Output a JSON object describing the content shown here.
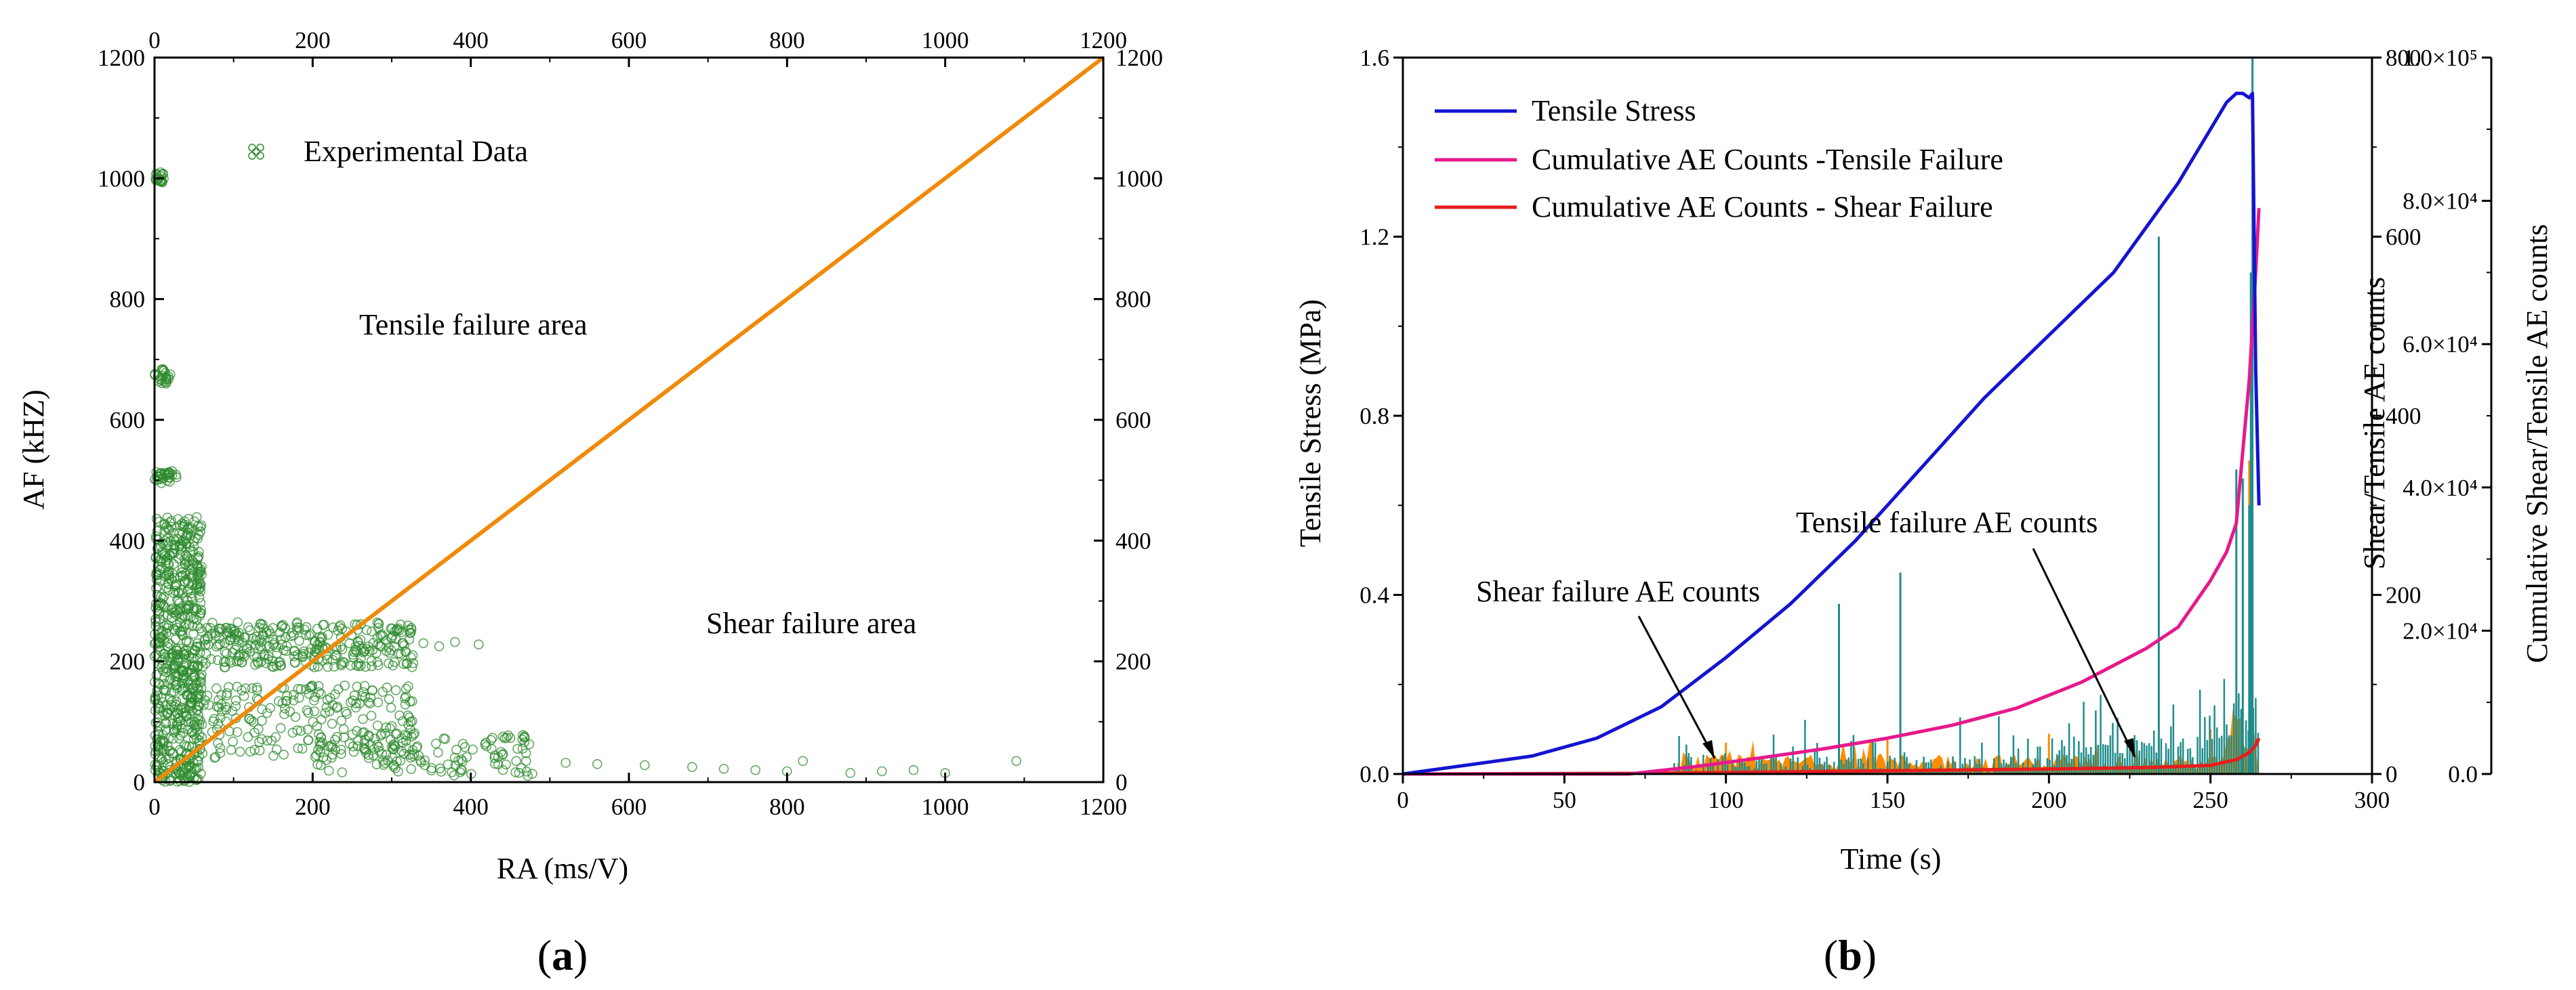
{
  "charts": {
    "a": {
      "caption_open": "(",
      "caption_letter": "a",
      "caption_close": ")",
      "xlabel": "RA  (ms/V)",
      "ylabel": "AF (kHZ)",
      "legend_label": "Experimental Data",
      "annotation_tensile": "Tensile failure area",
      "annotation_shear": "Shear failure area"
    },
    "b": {
      "caption_open": "(",
      "caption_letter": "b",
      "caption_close": ")",
      "xlabel": "Time (s)",
      "ylabel_left": "Tensile Stress (MPa)",
      "ylabel_right1": "Shear/Tensile AE counts",
      "ylabel_right2": "Cumulative Shear/Tensile AE counts",
      "legend": [
        "Tensile Stress",
        "Cumulative AE Counts -Tensile Failure",
        "Cumulative AE Counts - Shear Failure"
      ],
      "annotation_shear": "Shear failure AE counts",
      "annotation_tensile": "Tensile failure AE counts"
    }
  },
  "chart_data": [
    {
      "type": "scatter",
      "title": "",
      "xlabel": "RA  (ms/V)",
      "ylabel": "AF (kHZ)",
      "xlim": [
        0,
        1200
      ],
      "ylim": [
        0,
        1200
      ],
      "xticks": [
        "0",
        "200",
        "400",
        "600",
        "800",
        "1000",
        "1200"
      ],
      "yticks": [
        "0",
        "200",
        "400",
        "600",
        "800",
        "1000",
        "1200"
      ],
      "legend": [
        "Experimental Data"
      ],
      "boundary_line": {
        "x": [
          0,
          1200
        ],
        "y": [
          0,
          1200
        ],
        "color": "#F08A0A"
      },
      "clusters": [
        {
          "x_range": [
            0,
            12
          ],
          "y_range": [
            990,
            1010
          ],
          "n": 20
        },
        {
          "x_range": [
            0,
            22
          ],
          "y_range": [
            660,
            685
          ],
          "n": 25
        },
        {
          "x_range": [
            0,
            28
          ],
          "y_range": [
            495,
            515
          ],
          "n": 30
        },
        {
          "x_range": [
            0,
            60
          ],
          "y_range": [
            0,
            440
          ],
          "n": 650
        },
        {
          "x_range": [
            60,
            330
          ],
          "y_range": [
            190,
            265
          ],
          "n": 300
        },
        {
          "x_range": [
            60,
            330
          ],
          "y_range": [
            40,
            160
          ],
          "n": 220
        },
        {
          "x_range": [
            200,
            480
          ],
          "y_range": [
            10,
            80
          ],
          "n": 120
        }
      ],
      "points": [
        {
          "x": 560,
          "y": 30
        },
        {
          "x": 620,
          "y": 28
        },
        {
          "x": 680,
          "y": 25
        },
        {
          "x": 720,
          "y": 22
        },
        {
          "x": 760,
          "y": 20
        },
        {
          "x": 800,
          "y": 18
        },
        {
          "x": 820,
          "y": 35
        },
        {
          "x": 880,
          "y": 15
        },
        {
          "x": 920,
          "y": 18
        },
        {
          "x": 960,
          "y": 20
        },
        {
          "x": 1000,
          "y": 15
        },
        {
          "x": 1090,
          "y": 35
        },
        {
          "x": 340,
          "y": 230
        },
        {
          "x": 360,
          "y": 225
        },
        {
          "x": 380,
          "y": 232
        },
        {
          "x": 410,
          "y": 228
        },
        {
          "x": 430,
          "y": 40
        },
        {
          "x": 470,
          "y": 35
        },
        {
          "x": 520,
          "y": 32
        }
      ],
      "annotations": [
        "Tensile failure area",
        "Shear failure area"
      ],
      "color": "#2E8B2E"
    },
    {
      "type": "line",
      "title": "",
      "xlabel": "Time (s)",
      "ylabel": "Tensile Stress (MPa)",
      "xlim": [
        0,
        300
      ],
      "ylim": [
        0,
        1.6
      ],
      "xticks": [
        "0",
        "50",
        "100",
        "150",
        "200",
        "250",
        "300"
      ],
      "yticks": [
        "0.0",
        "0.4",
        "0.8",
        "1.2",
        "1.6"
      ],
      "y2_label": "Shear/Tensile AE counts",
      "y2lim": [
        0,
        800
      ],
      "y2ticks": [
        "0",
        "200",
        "400",
        "600",
        "800"
      ],
      "y3_label": "Cumulative Shear/Tensile AE counts",
      "y3lim": [
        0,
        100000
      ],
      "y3ticks": [
        "0.0",
        "2.0×10⁴",
        "4.0×10⁴",
        "6.0×10⁴",
        "8.0×10⁴",
        "1.0×10⁵"
      ],
      "series": [
        {
          "name": "Tensile Stress",
          "axis": "y",
          "color": "#1414D2",
          "x": [
            0,
            20,
            40,
            60,
            80,
            100,
            120,
            140,
            160,
            180,
            200,
            220,
            240,
            255,
            258,
            260,
            262,
            263,
            264,
            265
          ],
          "values": [
            0.0,
            0.02,
            0.04,
            0.08,
            0.15,
            0.26,
            0.38,
            0.52,
            0.68,
            0.84,
            0.98,
            1.12,
            1.32,
            1.5,
            1.52,
            1.52,
            1.51,
            1.52,
            0.9,
            0.6
          ]
        },
        {
          "name": "Cumulative AE Counts -Tensile Failure",
          "axis": "y3",
          "color": "#E6198C",
          "x": [
            0,
            70,
            90,
            110,
            130,
            150,
            170,
            190,
            210,
            230,
            240,
            250,
            255,
            258,
            260,
            262,
            264,
            265
          ],
          "values": [
            0,
            0,
            1000,
            2200,
            3500,
            5000,
            6800,
            9200,
            12800,
            17500,
            20500,
            27000,
            31000,
            35000,
            45000,
            55000,
            70000,
            79000
          ]
        },
        {
          "name": "Cumulative AE Counts - Shear Failure",
          "axis": "y3",
          "color": "#E61E1E",
          "x": [
            0,
            80,
            120,
            160,
            200,
            230,
            250,
            258,
            262,
            264,
            265
          ],
          "values": [
            0,
            100,
            300,
            500,
            700,
            900,
            1200,
            2000,
            3000,
            4000,
            5000
          ]
        },
        {
          "name": "Tensile failure AE counts",
          "axis": "y2",
          "color": "#1E8C8C",
          "spikes": [
            [
              135,
              190
            ],
            [
              154,
              225
            ],
            [
              234,
              600
            ],
            [
              258,
              340
            ],
            [
              260,
              330
            ],
            [
              262,
              300
            ],
            [
              263,
              800
            ],
            [
              262.5,
              560
            ]
          ]
        },
        {
          "name": "Shear failure AE counts",
          "axis": "y2",
          "color": "#FF8C00",
          "spikes": [
            [
              262,
              350
            ],
            [
              263,
              240
            ],
            [
              250,
              50
            ],
            [
              200,
              45
            ],
            [
              150,
              40
            ],
            [
              100,
              35
            ]
          ]
        }
      ],
      "annotations": [
        "Shear failure AE counts",
        "Tensile failure AE counts"
      ]
    }
  ]
}
